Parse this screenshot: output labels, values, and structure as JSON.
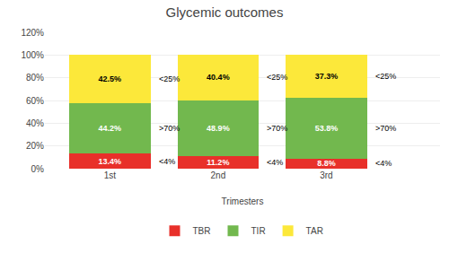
{
  "chart_data": {
    "type": "bar",
    "stacked": true,
    "title": "Glycemic outcomes",
    "xlabel": "Trimesters",
    "categories": [
      "1st",
      "2nd",
      "3rd"
    ],
    "series": [
      {
        "name": "TBR",
        "color": "#e8302a",
        "values": [
          13.4,
          11.2,
          8.8
        ],
        "value_labels": [
          "13.4%",
          "11.2%",
          "8.8%"
        ]
      },
      {
        "name": "TIR",
        "color": "#72b84e",
        "values": [
          44.2,
          48.9,
          53.8
        ],
        "value_labels": [
          "44.2%",
          "48.9%",
          "53.8%"
        ]
      },
      {
        "name": "TAR",
        "color": "#fce83a",
        "values": [
          42.5,
          40.4,
          37.3
        ],
        "value_labels": [
          "42.5%",
          "40.4%",
          "37.3%"
        ]
      }
    ],
    "annotations": [
      {
        "text": "<25%",
        "series": "TAR"
      },
      {
        "text": ">70%",
        "series": "TIR"
      },
      {
        "text": "<4%",
        "series": "TBR"
      }
    ],
    "ylim": [
      0,
      120
    ],
    "yticks": [
      {
        "value": 0,
        "label": "0%"
      },
      {
        "value": 20,
        "label": "20%"
      },
      {
        "value": 40,
        "label": "40%"
      },
      {
        "value": 60,
        "label": "60%"
      },
      {
        "value": 80,
        "label": "80%"
      },
      {
        "value": 100,
        "label": "100%"
      },
      {
        "value": 120,
        "label": "120%"
      }
    ],
    "grid": true,
    "legend": "bottom",
    "data_labels": true
  }
}
